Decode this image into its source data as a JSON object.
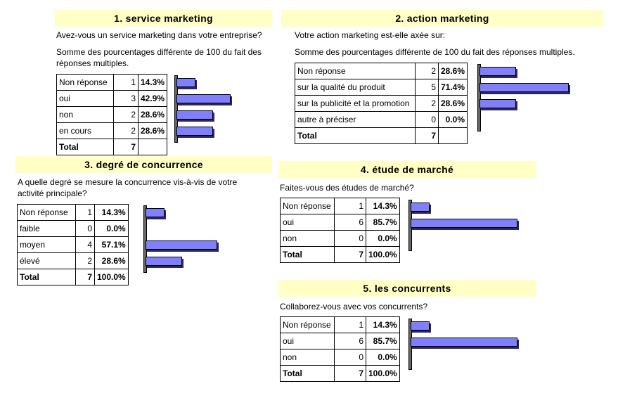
{
  "colors": {
    "title_bg": "#FFFFC6",
    "bar": "#8080FF"
  },
  "sections": [
    {
      "title": "1. service marketing",
      "question": "Avez-vous un service marketing dans votre entreprise?",
      "note": "Somme des pourcentages différente de 100 du fait des réponses multiples.",
      "rows": [
        {
          "label": "Non réponse",
          "count": "1",
          "pct": "14.3%",
          "value": 14.3
        },
        {
          "label": "oui",
          "count": "3",
          "pct": "42.9%",
          "value": 42.9
        },
        {
          "label": "non",
          "count": "2",
          "pct": "28.6%",
          "value": 28.6
        },
        {
          "label": "en cours",
          "count": "2",
          "pct": "28.6%",
          "value": 28.6
        }
      ],
      "total": {
        "label": "Total",
        "count": "7",
        "pct": ""
      }
    },
    {
      "title": "2. action marketing",
      "question": "Votre action marketing est-elle axée sur:",
      "note": "Somme des pourcentages différente de 100 du fait des réponses multiples.",
      "rows": [
        {
          "label": "Non réponse",
          "count": "2",
          "pct": "28.6%",
          "value": 28.6
        },
        {
          "label": "sur la qualité du produit",
          "count": "5",
          "pct": "71.4%",
          "value": 71.4
        },
        {
          "label": "sur la publicité et la promotion",
          "count": "2",
          "pct": "28.6%",
          "value": 28.6
        },
        {
          "label": "autre à préciser",
          "count": "0",
          "pct": "0.0%",
          "value": 0
        }
      ],
      "total": {
        "label": "Total",
        "count": "7",
        "pct": ""
      }
    },
    {
      "title": "3. degré de concurrence",
      "question": "A quelle degré se mesure la concurrence vis-à-vis de votre activité principale?",
      "rows": [
        {
          "label": "Non réponse",
          "count": "1",
          "pct": "14.3%",
          "value": 14.3
        },
        {
          "label": "faible",
          "count": "0",
          "pct": "0.0%",
          "value": 0
        },
        {
          "label": "moyen",
          "count": "4",
          "pct": "57.1%",
          "value": 57.1
        },
        {
          "label": "élevé",
          "count": "2",
          "pct": "28.6%",
          "value": 28.6
        }
      ],
      "total": {
        "label": "Total",
        "count": "7",
        "pct": "100.0%"
      }
    },
    {
      "title": "4. étude de marché",
      "question": "Faites-vous des études de marché?",
      "rows": [
        {
          "label": "Non réponse",
          "count": "1",
          "pct": "14.3%",
          "value": 14.3
        },
        {
          "label": "oui",
          "count": "6",
          "pct": "85.7%",
          "value": 85.7
        },
        {
          "label": "non",
          "count": "0",
          "pct": "0.0%",
          "value": 0
        }
      ],
      "total": {
        "label": "Total",
        "count": "7",
        "pct": "100.0%"
      }
    },
    {
      "title": "5. les concurrents",
      "question": "Collaborez-vous avec vos concurrents?",
      "rows": [
        {
          "label": "Non réponse",
          "count": "1",
          "pct": "14.3%",
          "value": 14.3
        },
        {
          "label": "oui",
          "count": "6",
          "pct": "85.7%",
          "value": 85.7
        },
        {
          "label": "non",
          "count": "0",
          "pct": "0.0%",
          "value": 0
        }
      ],
      "total": {
        "label": "Total",
        "count": "7",
        "pct": "100.0%"
      }
    }
  ]
}
